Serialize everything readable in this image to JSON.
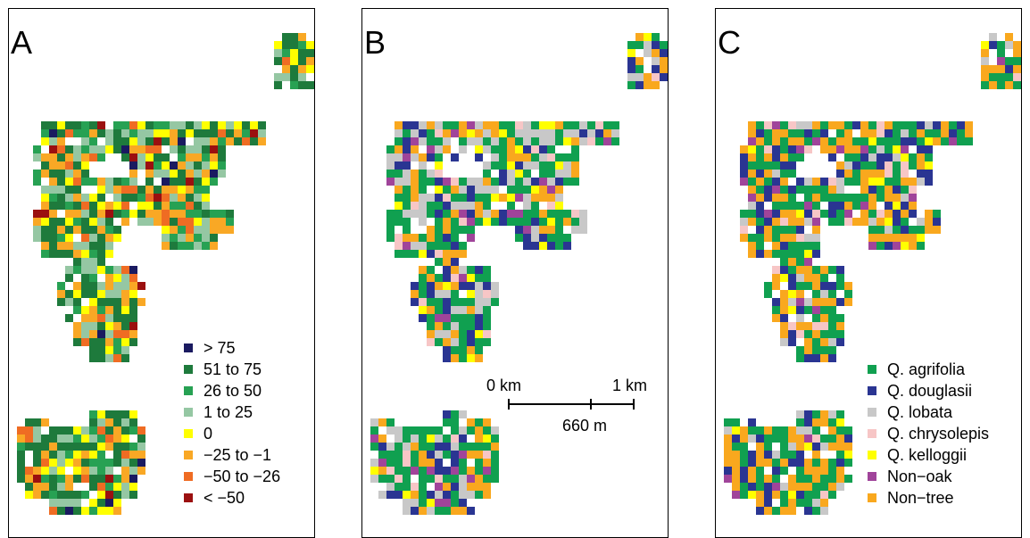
{
  "panels": [
    {
      "letter": "A"
    },
    {
      "letter": "B"
    },
    {
      "letter": "C"
    }
  ],
  "legend_a": [
    {
      "label": "> 75",
      "color": "#1a1a60"
    },
    {
      "label": "51 to 75",
      "color": "#1e7a3c"
    },
    {
      "label": "26 to 50",
      "color": "#27a153"
    },
    {
      "label": "1 to 25",
      "color": "#95c7a3"
    },
    {
      "label": "0",
      "color": "#ffff00"
    },
    {
      "label": "−25 to −1",
      "color": "#f9a825"
    },
    {
      "label": "−50 to −26",
      "color": "#ef6c23"
    },
    {
      "label": "< −50",
      "color": "#9b1010"
    }
  ],
  "legend_c": [
    {
      "label": "Q. agrifolia",
      "color": "#10a050"
    },
    {
      "label": "Q. douglasii",
      "color": "#2a3592"
    },
    {
      "label": "Q. lobata",
      "color": "#c8c8c8"
    },
    {
      "label": "Q. chrysolepis",
      "color": "#f7c6c6"
    },
    {
      "label": "Q. kelloggii",
      "color": "#ffff00"
    },
    {
      "label": "Non−oak",
      "color": "#a0449a"
    },
    {
      "label": "Non−tree",
      "color": "#f9a81e"
    }
  ],
  "scalebar": {
    "left_label": "0 km",
    "right_label": "1 km",
    "bottom_label": "660 m"
  }
}
